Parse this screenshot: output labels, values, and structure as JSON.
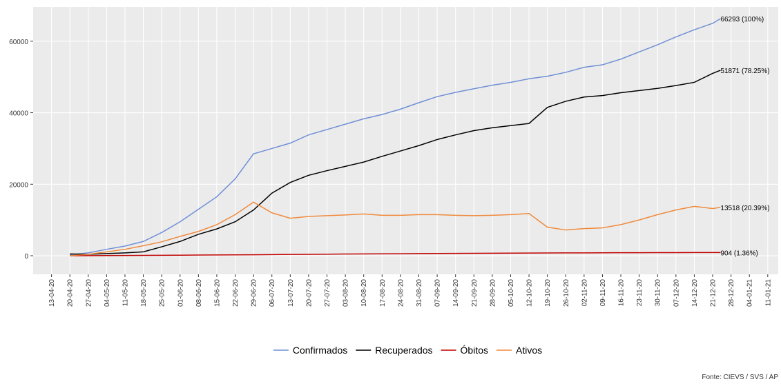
{
  "chart_data": {
    "type": "line",
    "caption": "Fonte: CIEVS / SVS / AP",
    "x": [
      "20-04-20",
      "27-04-20",
      "04-05-20",
      "11-05-20",
      "18-05-20",
      "25-05-20",
      "01-06-20",
      "08-06-20",
      "15-06-20",
      "22-06-20",
      "29-06-20",
      "06-07-20",
      "13-07-20",
      "20-07-20",
      "27-07-20",
      "03-08-20",
      "10-08-20",
      "17-08-20",
      "24-08-20",
      "31-08-20",
      "07-09-20",
      "14-09-20",
      "21-09-20",
      "28-09-20",
      "05-10-20",
      "12-10-20",
      "19-10-20",
      "26-10-20",
      "02-11-20",
      "09-11-20",
      "16-11-20",
      "23-11-20",
      "30-11-20",
      "07-12-20",
      "14-12-20",
      "21-12-20",
      "24-12-20"
    ],
    "series": [
      {
        "name": "Confirmados",
        "color": "#6f8fd6",
        "end_label": "66293 (100%)",
        "values": [
          300,
          800,
          1800,
          2700,
          4000,
          6500,
          9500,
          13000,
          16500,
          21500,
          28500,
          30000,
          31500,
          33800,
          35300,
          36800,
          38300,
          39500,
          41000,
          42800,
          44500,
          45700,
          46700,
          47700,
          48500,
          49500,
          50200,
          51300,
          52700,
          53400,
          55000,
          57000,
          59000,
          61200,
          63200,
          65000,
          66293
        ]
      },
      {
        "name": "Recuperados",
        "color": "#000000",
        "end_label": "51871 (78.25%)",
        "values": [
          500,
          400,
          600,
          800,
          1100,
          2500,
          4000,
          6000,
          7500,
          9500,
          12800,
          17500,
          20500,
          22500,
          23800,
          25000,
          26200,
          27800,
          29300,
          30800,
          32500,
          33800,
          35000,
          35800,
          36400,
          37000,
          41500,
          43200,
          44400,
          44800,
          45600,
          46200,
          46800,
          47600,
          48500,
          51000,
          51871
        ]
      },
      {
        "name": "Óbitos",
        "color": "#c00000",
        "end_label": "904 (1.36%)",
        "values": [
          0,
          20,
          50,
          80,
          100,
          130,
          160,
          190,
          220,
          250,
          280,
          320,
          360,
          400,
          440,
          480,
          510,
          540,
          570,
          600,
          630,
          660,
          690,
          710,
          730,
          750,
          770,
          790,
          810,
          830,
          850,
          860,
          870,
          880,
          890,
          900,
          904
        ]
      },
      {
        "name": "Ativos",
        "color": "#f08a3c",
        "end_label": "13518 (20.39%)",
        "values": [
          0,
          400,
          1100,
          1800,
          2800,
          3900,
          5400,
          6800,
          8700,
          11500,
          15000,
          12000,
          10500,
          11000,
          11200,
          11400,
          11700,
          11300,
          11300,
          11500,
          11500,
          11300,
          11200,
          11300,
          11500,
          11800,
          8000,
          7200,
          7600,
          7800,
          8700,
          10000,
          11500,
          12800,
          13800,
          13200,
          13518
        ]
      }
    ],
    "xlim": [
      "06-04-20",
      "15-01-21"
    ],
    "xticks": [
      "13-04-20",
      "20-04-20",
      "27-04-20",
      "04-05-20",
      "11-05-20",
      "18-05-20",
      "25-05-20",
      "01-06-20",
      "08-06-20",
      "15-06-20",
      "22-06-20",
      "29-06-20",
      "06-07-20",
      "13-07-20",
      "20-07-20",
      "27-07-20",
      "03-08-20",
      "10-08-20",
      "17-08-20",
      "24-08-20",
      "31-08-20",
      "07-09-20",
      "14-09-20",
      "21-09-20",
      "28-09-20",
      "05-10-20",
      "12-10-20",
      "19-10-20",
      "26-10-20",
      "02-11-20",
      "09-11-20",
      "16-11-20",
      "23-11-20",
      "30-11-20",
      "07-12-20",
      "14-12-20",
      "21-12-20",
      "28-12-20",
      "04-01-21",
      "11-01-21"
    ],
    "ylim": [
      -5200,
      69600
    ],
    "yticks": [
      0,
      20000,
      40000,
      60000
    ],
    "grid": true,
    "legend": "bottom"
  }
}
